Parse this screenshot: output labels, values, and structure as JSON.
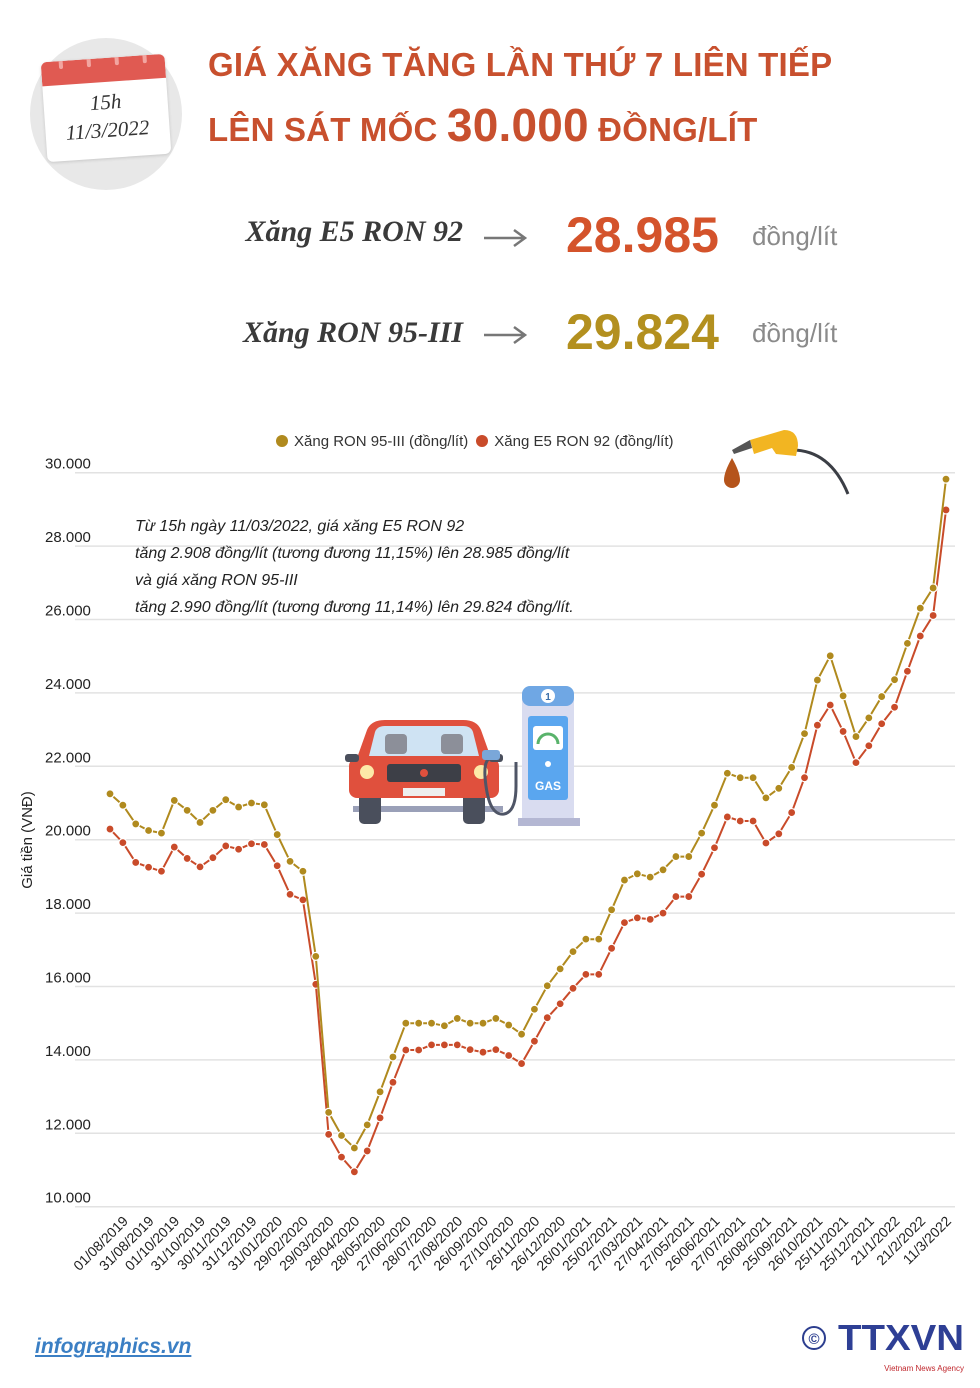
{
  "header": {
    "time": "15h",
    "date": "11/3/2022",
    "title_line1": "GIÁ XĂNG TĂNG LẦN THỨ 7 LIÊN TIẾP",
    "title_line2_prefix": "LÊN SÁT MỐC ",
    "title_line2_number": "30.000",
    "title_line2_suffix": " ĐỒNG/LÍT"
  },
  "prices": [
    {
      "name": "Xăng E5 RON 92",
      "value": "28.985",
      "unit": "đồng/lít",
      "color": "#d4532b"
    },
    {
      "name": "Xăng RON 95-III",
      "value": "29.824",
      "unit": "đồng/lít",
      "color": "#b3901f"
    }
  ],
  "note": [
    "Từ 15h ngày 11/03/2022, giá xăng E5 RON 92",
    "tăng 2.908 đồng/lít (tương đương 11,15%) lên 28.985 đồng/lít",
    "và giá xăng RON 95-III",
    "tăng 2.990 đồng/lít (tương đương 11,14%) lên 29.824 đồng/lít."
  ],
  "illustration": {
    "pump_number": "1",
    "pump_label": "GAS"
  },
  "chart_data": {
    "type": "line",
    "title": "",
    "xlabel": "",
    "ylabel": "Giá tiền (VNĐ)",
    "ylim": [
      10000,
      30000
    ],
    "y_ticks": [
      "10.000",
      "12.000",
      "14.000",
      "16.000",
      "18.000",
      "20.000",
      "22.000",
      "24.000",
      "26.000",
      "28.000",
      "30.000"
    ],
    "grid": true,
    "legend_position": "top-center",
    "x_labels": [
      "01/08/2019",
      "31/08/2019",
      "01/10/2019",
      "31/10/2019",
      "30/11/2019",
      "31/12/2019",
      "31/01/2020",
      "29/02/2020",
      "29/03/2020",
      "28/04/2020",
      "28/05/2020",
      "27/06/2020",
      "28/07/2020",
      "27/08/2020",
      "26/09/2020",
      "27/10/2020",
      "26/11/2020",
      "26/12/2020",
      "26/01/2021",
      "25/02/2021",
      "27/03/2021",
      "27/04/2021",
      "27/05/2021",
      "26/06/2021",
      "27/07/2021",
      "26/08/2021",
      "25/09/2021",
      "26/10/2021",
      "25/11/2021",
      "25/12/2021",
      "21/1/2022",
      "21/2/2022",
      "11/3/2022"
    ],
    "series": [
      {
        "name": "Xăng RON 95-III (đồng/lít)",
        "color": "#b08a1e",
        "values": [
          21250,
          20940,
          20430,
          20250,
          20180,
          21070,
          20800,
          20470,
          20800,
          21090,
          20890,
          21000,
          20950,
          20140,
          19410,
          19140,
          16820,
          12570,
          11940,
          11600,
          12230,
          13130,
          14080,
          15000,
          15000,
          15000,
          14930,
          15130,
          15000,
          15000,
          15130,
          14950,
          14700,
          15380,
          16020,
          16480,
          16950,
          17290,
          17290,
          18090,
          18900,
          19070,
          18980,
          19180,
          19540,
          19540,
          20180,
          20940,
          21810,
          21690,
          21690,
          21140,
          21400,
          21970,
          22890,
          24350,
          25010,
          23920,
          22810,
          23320,
          23900,
          24360,
          25350,
          26310,
          26860,
          29824
        ]
      },
      {
        "name": "Xăng E5 RON 92 (đồng/lít)",
        "color": "#c94b2a",
        "values": [
          20290,
          19920,
          19380,
          19250,
          19140,
          19800,
          19490,
          19260,
          19510,
          19830,
          19740,
          19890,
          19870,
          19290,
          18510,
          18360,
          16060,
          11970,
          11350,
          10950,
          11520,
          12420,
          13390,
          14270,
          14270,
          14410,
          14410,
          14410,
          14280,
          14210,
          14280,
          14120,
          13900,
          14510,
          15150,
          15530,
          15950,
          16330,
          16330,
          17040,
          17740,
          17870,
          17830,
          18000,
          18450,
          18450,
          19060,
          19780,
          20620,
          20510,
          20510,
          19910,
          20160,
          20740,
          21690,
          23120,
          23670,
          22950,
          22100,
          22560,
          23160,
          23610,
          24590,
          25550,
          26110,
          28985
        ]
      }
    ]
  },
  "footer": {
    "site": "infographics.vn",
    "copyright": "©",
    "agency": "TTXVN",
    "agency_sub": "Vietnam News Agency"
  }
}
